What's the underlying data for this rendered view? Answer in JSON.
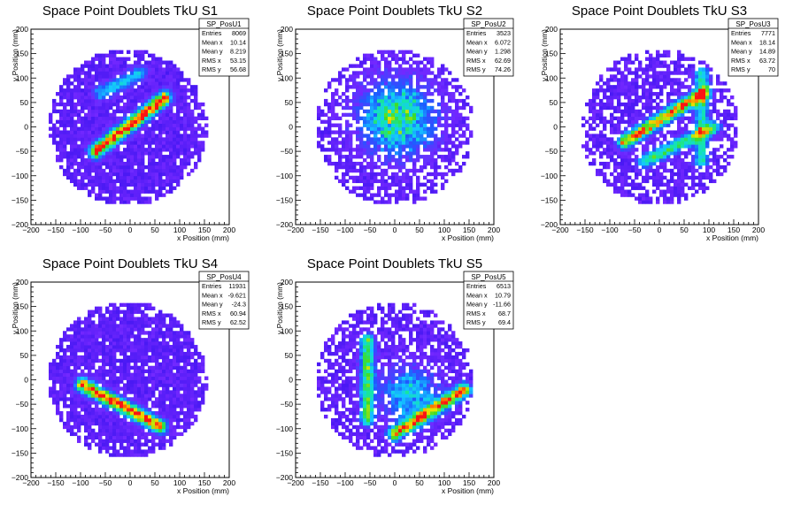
{
  "chart_data": [
    {
      "type": "heatmap",
      "title": "Space Point Doublets TkU S1",
      "xlabel": "x Position (mm)",
      "ylabel": "y Position (mm)",
      "xlim": [
        -200,
        200
      ],
      "ylim": [
        -200,
        200
      ],
      "x_ticks": [
        -200,
        -150,
        -100,
        -50,
        0,
        50,
        100,
        150,
        200
      ],
      "y_ticks": [
        -200,
        -150,
        -100,
        -50,
        0,
        50,
        100,
        150,
        200
      ],
      "stats": {
        "name": "SP_PosU1",
        "rows": [
          {
            "label": "Entries",
            "value": "8069"
          },
          {
            "label": "Mean x",
            "value": "10.14"
          },
          {
            "label": "Mean y",
            "value": "8.219"
          },
          {
            "label": "RMS x",
            "value": "53.15"
          },
          {
            "label": "RMS y",
            "value": "56.68"
          }
        ]
      },
      "occupancy": {
        "center": [
          -5,
          0
        ],
        "radius": 160
      },
      "features": [
        {
          "kind": "line",
          "from": [
            -70,
            -50
          ],
          "to": [
            70,
            60
          ],
          "peak": 1.0
        },
        {
          "kind": "line",
          "from": [
            -60,
            70
          ],
          "to": [
            20,
            110
          ],
          "peak": 0.35
        }
      ]
    },
    {
      "type": "heatmap",
      "title": "Space Point Doublets TkU S2",
      "xlabel": "x Position (mm)",
      "ylabel": "y Position (mm)",
      "xlim": [
        -200,
        200
      ],
      "ylim": [
        -200,
        200
      ],
      "x_ticks": [
        -200,
        -150,
        -100,
        -50,
        0,
        50,
        100,
        150,
        200
      ],
      "y_ticks": [
        -200,
        -150,
        -100,
        -50,
        0,
        50,
        100,
        150,
        200
      ],
      "stats": {
        "name": "SP_PosU2",
        "rows": [
          {
            "label": "Entries",
            "value": "3523"
          },
          {
            "label": "Mean x",
            "value": "6.072"
          },
          {
            "label": "Mean y",
            "value": "1.298"
          },
          {
            "label": "RMS x",
            "value": "62.69"
          },
          {
            "label": "RMS y",
            "value": "74.26"
          }
        ]
      },
      "occupancy": {
        "center": [
          0,
          0
        ],
        "radius": 160
      },
      "features": [
        {
          "kind": "blob",
          "center": [
            5,
            20
          ],
          "sigma": 45,
          "peak": 0.7
        }
      ]
    },
    {
      "type": "heatmap",
      "title": "Space Point Doublets TkU S3",
      "xlabel": "x Position (mm)",
      "ylabel": "y Position (mm)",
      "xlim": [
        -200,
        200
      ],
      "ylim": [
        -200,
        200
      ],
      "x_ticks": [
        -200,
        -150,
        -100,
        -50,
        0,
        50,
        100,
        150,
        200
      ],
      "y_ticks": [
        -200,
        -150,
        -100,
        -50,
        0,
        50,
        100,
        150,
        200
      ],
      "stats": {
        "name": "SP_PosU3",
        "rows": [
          {
            "label": "Entries",
            "value": "7771"
          },
          {
            "label": "Mean x",
            "value": "18.14"
          },
          {
            "label": "Mean y",
            "value": "14.89"
          },
          {
            "label": "RMS x",
            "value": "63.72"
          },
          {
            "label": "RMS y",
            "value": "70"
          }
        ]
      },
      "occupancy": {
        "center": [
          0,
          0
        ],
        "radius": 160
      },
      "features": [
        {
          "kind": "line",
          "from": [
            -70,
            -30
          ],
          "to": [
            90,
            70
          ],
          "peak": 0.9
        },
        {
          "kind": "line",
          "from": [
            -30,
            -70
          ],
          "to": [
            110,
            0
          ],
          "peak": 0.55
        },
        {
          "kind": "line",
          "from": [
            85,
            -70
          ],
          "to": [
            85,
            110
          ],
          "peak": 0.45
        }
      ]
    },
    {
      "type": "heatmap",
      "title": "Space Point Doublets TkU S4",
      "xlabel": "x Position (mm)",
      "ylabel": "y Position (mm)",
      "xlim": [
        -200,
        200
      ],
      "ylim": [
        -200,
        200
      ],
      "x_ticks": [
        -200,
        -150,
        -100,
        -50,
        0,
        50,
        100,
        150,
        200
      ],
      "y_ticks": [
        -200,
        -150,
        -100,
        -50,
        0,
        50,
        100,
        150,
        200
      ],
      "stats": {
        "name": "SP_PosU4",
        "rows": [
          {
            "label": "Entries",
            "value": "11931"
          },
          {
            "label": "Mean x",
            "value": "-9.621"
          },
          {
            "label": "Mean y",
            "value": "-24.3"
          },
          {
            "label": "RMS x",
            "value": "60.94"
          },
          {
            "label": "RMS y",
            "value": "62.52"
          }
        ]
      },
      "occupancy": {
        "center": [
          -5,
          0
        ],
        "radius": 160
      },
      "features": [
        {
          "kind": "line",
          "from": [
            -95,
            -10
          ],
          "to": [
            60,
            -95
          ],
          "peak": 1.0
        }
      ]
    },
    {
      "type": "heatmap",
      "title": "Space Point Doublets TkU S5",
      "xlabel": "x Position (mm)",
      "ylabel": "y Position (mm)",
      "xlim": [
        -200,
        200
      ],
      "ylim": [
        -200,
        200
      ],
      "x_ticks": [
        -200,
        -150,
        -100,
        -50,
        0,
        50,
        100,
        150,
        200
      ],
      "y_ticks": [
        -200,
        -150,
        -100,
        -50,
        0,
        50,
        100,
        150,
        200
      ],
      "stats": {
        "name": "SP_PosU5",
        "rows": [
          {
            "label": "Entries",
            "value": "6513"
          },
          {
            "label": "Mean x",
            "value": "10.79"
          },
          {
            "label": "Mean y",
            "value": "-11.66"
          },
          {
            "label": "RMS x",
            "value": "68.7"
          },
          {
            "label": "RMS y",
            "value": "69.4"
          }
        ]
      },
      "occupancy": {
        "center": [
          0,
          0
        ],
        "radius": 160
      },
      "features": [
        {
          "kind": "line",
          "from": [
            -55,
            -80
          ],
          "to": [
            -55,
            80
          ],
          "peak": 0.6
        },
        {
          "kind": "line",
          "from": [
            0,
            -110
          ],
          "to": [
            140,
            -20
          ],
          "peak": 0.9
        },
        {
          "kind": "blob",
          "center": [
            30,
            -30
          ],
          "sigma": 35,
          "peak": 0.45
        }
      ]
    }
  ]
}
